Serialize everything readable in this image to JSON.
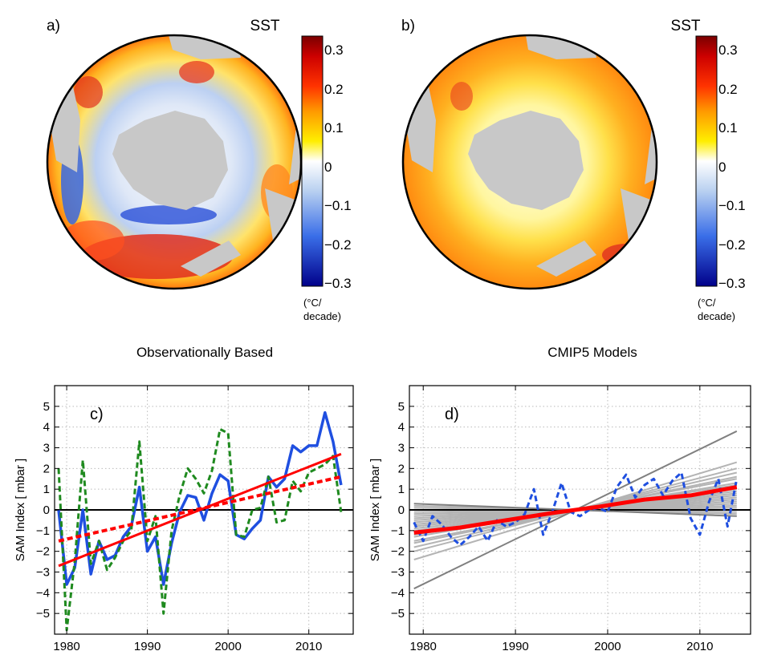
{
  "panels": {
    "a": {
      "label": "a)",
      "title": "SST",
      "caption": "Observationally Based",
      "colorbar": {
        "ticks": [
          "0.3",
          "0.2",
          "0.1",
          "0",
          "−0.1",
          "−0.2",
          "−0.3"
        ],
        "unit_line1": "(°C/",
        "unit_line2": "decade)"
      }
    },
    "b": {
      "label": "b)",
      "title": "SST",
      "caption": "CMIP5 Models",
      "colorbar": {
        "ticks": [
          "0.3",
          "0.2",
          "0.1",
          "0",
          "−0.1",
          "−0.2",
          "−0.3"
        ],
        "unit_line1": "(°C/",
        "unit_line2": "decade)"
      }
    }
  },
  "colors": {
    "blue": "#1f4fe0",
    "green": "#1f8a1f",
    "red": "#ff0000",
    "gray": "#a0a0a0",
    "dark_gray": "#7a7a7a",
    "land": "#c8c8c8"
  },
  "chart_data": [
    {
      "panel": "c",
      "label": "c)",
      "type": "line",
      "xlabel": "",
      "ylabel": "SAM Index  [ mbar ]",
      "xlim": [
        1978.5,
        2015.5
      ],
      "ylim": [
        -6,
        6
      ],
      "xticks": [
        1980,
        1990,
        2000,
        2010
      ],
      "yticks": [
        -5,
        -4,
        -3,
        -2,
        -1,
        0,
        1,
        2,
        3,
        4,
        5
      ],
      "grid": true,
      "zero_line": true,
      "series": [
        {
          "style": "solid",
          "color": "#1f4fe0",
          "width": 3.5,
          "x": [
            1979,
            1980,
            1981,
            1982,
            1983,
            1984,
            1985,
            1986,
            1987,
            1988,
            1989,
            1990,
            1991,
            1992,
            1993,
            1994,
            1995,
            1996,
            1997,
            1998,
            1999,
            2000,
            2001,
            2002,
            2003,
            2004,
            2005,
            2006,
            2007,
            2008,
            2009,
            2010,
            2011,
            2012,
            2013,
            2014
          ],
          "y": [
            0.0,
            -3.6,
            -2.8,
            0.0,
            -3.1,
            -1.5,
            -2.4,
            -2.2,
            -1.3,
            -0.8,
            1.1,
            -2.0,
            -1.3,
            -3.6,
            -1.6,
            -0.1,
            0.7,
            0.6,
            -0.5,
            0.8,
            1.7,
            1.4,
            -1.2,
            -1.4,
            -0.9,
            -0.5,
            1.6,
            1.1,
            1.5,
            3.1,
            2.8,
            3.1,
            3.1,
            4.7,
            3.3,
            1.2
          ]
        },
        {
          "style": "dashed",
          "color": "#1f8a1f",
          "width": 3,
          "x": [
            1979,
            1980,
            1981,
            1982,
            1983,
            1984,
            1985,
            1986,
            1987,
            1988,
            1989,
            1990,
            1991,
            1992,
            1993,
            1994,
            1995,
            1996,
            1997,
            1998,
            1999,
            2000,
            2001,
            2002,
            2003,
            2004,
            2005,
            2006,
            2007,
            2008,
            2009,
            2010,
            2011,
            2012,
            2013,
            2014
          ],
          "y": [
            2.0,
            -5.8,
            -2.5,
            2.4,
            -2.6,
            -1.5,
            -2.9,
            -2.3,
            -1.5,
            -1.0,
            3.3,
            -1.5,
            -0.3,
            -5.0,
            -1.0,
            0.7,
            2.0,
            1.5,
            0.8,
            1.9,
            3.9,
            3.7,
            -1.2,
            -1.3,
            0.0,
            0.1,
            1.6,
            -0.6,
            -0.5,
            1.4,
            0.9,
            1.8,
            2.0,
            2.2,
            2.6,
            -0.1
          ]
        },
        {
          "style": "solid",
          "color": "#ff0000",
          "width": 3,
          "x": [
            1979,
            2014
          ],
          "y": [
            -2.7,
            2.7
          ]
        },
        {
          "style": "dashed",
          "color": "#ff0000",
          "width": 4,
          "x": [
            1979,
            2014
          ],
          "y": [
            -1.5,
            1.6
          ]
        }
      ]
    },
    {
      "panel": "d",
      "label": "d)",
      "type": "line",
      "xlabel": "",
      "ylabel": "SAM Index  [ mbar ]",
      "xlim": [
        1978.5,
        2015.5
      ],
      "ylim": [
        -6,
        6
      ],
      "xticks": [
        1980,
        1990,
        2000,
        2010
      ],
      "yticks": [
        -5,
        -4,
        -3,
        -2,
        -1,
        0,
        1,
        2,
        3,
        4,
        5
      ],
      "grid": true,
      "zero_line": true,
      "model_trends": {
        "color": "#b4b4b4",
        "x": [
          1979,
          2014
        ],
        "lines": [
          [
            -2.4,
            2.3
          ],
          [
            -2.0,
            2.0
          ],
          [
            -1.8,
            1.8
          ],
          [
            -1.6,
            1.6
          ],
          [
            -1.5,
            1.5
          ],
          [
            -1.3,
            1.3
          ],
          [
            -1.2,
            1.2
          ],
          [
            -1.0,
            1.0
          ],
          [
            -0.9,
            0.9
          ],
          [
            -0.8,
            0.8
          ],
          [
            -0.7,
            0.7
          ],
          [
            -0.6,
            0.6
          ],
          [
            -0.5,
            0.5
          ],
          [
            -0.4,
            0.4
          ],
          [
            -0.3,
            0.3
          ],
          [
            -0.2,
            0.2
          ],
          [
            -0.1,
            0.1
          ],
          [
            0.0,
            0.0
          ],
          [
            0.1,
            -0.1
          ],
          [
            0.2,
            -0.2
          ]
        ]
      },
      "series": [
        {
          "style": "solid",
          "color": "#808080",
          "width": 2,
          "x": [
            1979,
            2014
          ],
          "y": [
            -3.8,
            3.8
          ]
        },
        {
          "style": "solid",
          "color": "#808080",
          "width": 2,
          "x": [
            1979,
            2014
          ],
          "y": [
            0.3,
            -0.3
          ]
        },
        {
          "style": "dashed",
          "color": "#1f4fe0",
          "width": 3,
          "x": [
            1979,
            1980,
            1981,
            1982,
            1983,
            1984,
            1985,
            1986,
            1987,
            1988,
            1989,
            1990,
            1991,
            1992,
            1993,
            1994,
            1995,
            1996,
            1997,
            1998,
            1999,
            2000,
            2001,
            2002,
            2003,
            2004,
            2005,
            2006,
            2007,
            2008,
            2009,
            2010,
            2011,
            2012,
            2013,
            2014
          ],
          "y": [
            -0.6,
            -1.5,
            -0.3,
            -0.7,
            -1.3,
            -1.7,
            -1.3,
            -0.8,
            -1.5,
            -0.5,
            -0.8,
            -0.6,
            -0.2,
            1.0,
            -1.2,
            -0.1,
            1.3,
            -0.1,
            -0.3,
            0.0,
            0.1,
            -0.1,
            1.1,
            1.7,
            0.6,
            1.2,
            1.5,
            0.7,
            1.4,
            1.8,
            -0.4,
            -1.2,
            0.4,
            1.5,
            -0.8,
            1.5
          ]
        },
        {
          "style": "solid",
          "color": "#ff0000",
          "width": 5,
          "x": [
            1979,
            1984,
            1989,
            1994,
            1999,
            2004,
            2009,
            2014
          ],
          "y": [
            -1.1,
            -0.85,
            -0.5,
            -0.15,
            0.15,
            0.5,
            0.7,
            1.1
          ]
        }
      ]
    }
  ]
}
